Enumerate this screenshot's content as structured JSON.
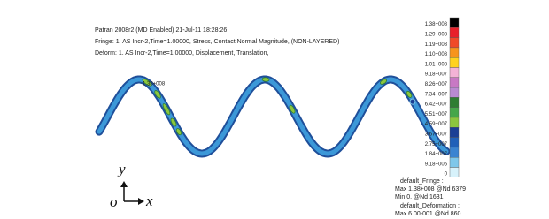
{
  "header": {
    "lines": [
      "Patran 2008r2 (MD Enabled) 21-Jul-11 18:28:26",
      "Fringe: 1. AS Incr-2,Time=1.00000, Stress, Contact Normal Magnitude, (NON-LAYERED)",
      "Deform: 1. AS Incr-2,Time=1.00000, Displacement, Translation,"
    ]
  },
  "peak_label": "1.38+008",
  "legend": {
    "labels": [
      "1.38+008",
      "1.29+008",
      "1.19+008",
      "1.10+008",
      "1.01+008",
      "9.18+007",
      "8.26+007",
      "7.34+007",
      "6.42+007",
      "5.51+007",
      "4.59+007",
      "3.67+007",
      "2.75+007",
      "1.84+007",
      "9.18+006",
      "0"
    ],
    "colors": [
      "#000000",
      "#e8202a",
      "#f04a28",
      "#f7941d",
      "#ffd21f",
      "#f3b3d6",
      "#c879c4",
      "#b98ad1",
      "#2e7d32",
      "#46a64a",
      "#8cc63f",
      "#1b3f95",
      "#2160b8",
      "#3b84d1",
      "#7ec7ea",
      "#d7f2fb"
    ]
  },
  "summary": [
    "default_Fringe :",
    "Max 1.38+008 @Nd 6379",
    "Min 0. @Nd 1631",
    "default_Deformation :",
    "Max 6.00-001 @Nd 860"
  ],
  "triad": {
    "y": "y",
    "origin": "o",
    "x": "x"
  }
}
